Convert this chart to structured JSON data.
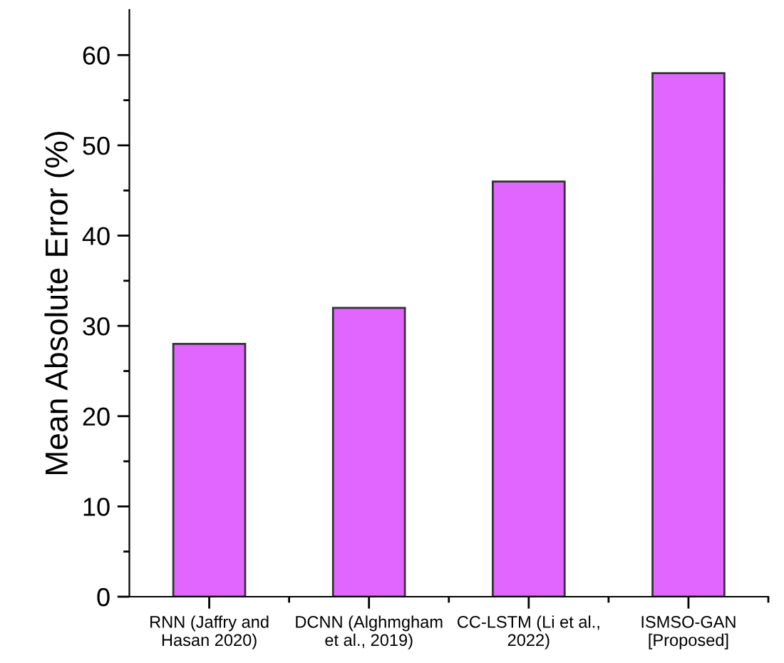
{
  "chart_data": {
    "type": "bar",
    "ylabel": "Mean Absolute Error (%)",
    "categories": [
      "RNN (Jaffry and\nHasan 2020)",
      "DCNN (Alghmgham\net al., 2019)",
      "CC-LSTM (Li et al.,\n2022)",
      "ISMSO-GAN\n[Proposed]"
    ],
    "series": [
      {
        "color": "#e066ff",
        "values": [
          28,
          32,
          46,
          58
        ]
      }
    ],
    "ylim": [
      0,
      65
    ],
    "yticks": [
      0,
      {
        "value": 5,
        "label": null
      },
      10,
      {
        "value": 15,
        "label": null
      },
      20,
      {
        "value": 25,
        "label": null
      },
      30,
      {
        "value": 35,
        "label": null
      },
      40,
      {
        "value": 45,
        "label": null
      },
      50,
      {
        "value": 55,
        "label": null
      },
      60
    ],
    "grid": false,
    "legend": false
  }
}
